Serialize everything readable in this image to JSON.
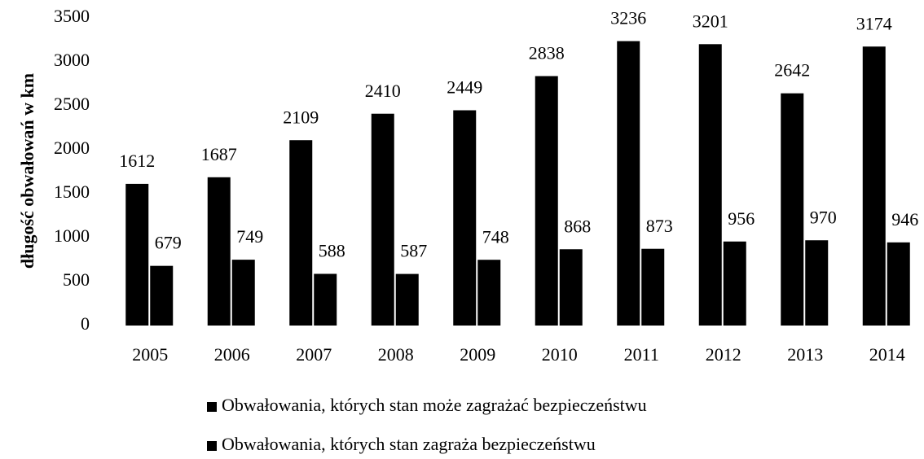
{
  "chart_data": {
    "type": "bar",
    "y_label": "długość obwałowań w km",
    "categories": [
      "2005",
      "2006",
      "2007",
      "2008",
      "2009",
      "2010",
      "2011",
      "2012",
      "2013",
      "2014"
    ],
    "series": [
      {
        "name": "Obwałowania, których stan może zagrażać bezpieczeństwu",
        "color": "#000000",
        "values": [
          1612,
          1687,
          2109,
          2410,
          2449,
          2838,
          3236,
          3201,
          2642,
          3174
        ]
      },
      {
        "name": "Obwałowania, których stan zagraża bezpieczeństwu",
        "color": "#000000",
        "values": [
          679,
          749,
          588,
          587,
          748,
          868,
          873,
          956,
          970,
          946
        ]
      }
    ],
    "ylim": [
      0,
      3500
    ],
    "yticks": [
      0,
      500,
      1000,
      1500,
      2000,
      2500,
      3000,
      3500
    ],
    "grid": false
  }
}
